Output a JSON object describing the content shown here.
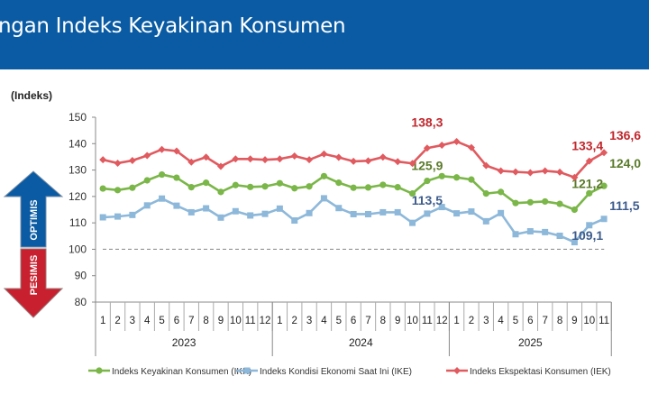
{
  "header": {
    "title": "ngan Indeks Keyakinan Konsumen"
  },
  "chart_data": {
    "type": "line",
    "ylabel": "(Indeks)",
    "ylim": [
      80,
      150
    ],
    "yticks": [
      80,
      90,
      100,
      110,
      120,
      130,
      140,
      150
    ],
    "reference_line": 100,
    "years": [
      {
        "label": "2023",
        "months": 12
      },
      {
        "label": "2024",
        "months": 12
      },
      {
        "label": "2025",
        "months": 11
      }
    ],
    "categories": [
      "1",
      "2",
      "3",
      "4",
      "5",
      "6",
      "7",
      "8",
      "9",
      "10",
      "11",
      "12",
      "1",
      "2",
      "3",
      "4",
      "5",
      "6",
      "7",
      "8",
      "9",
      "10",
      "11",
      "12",
      "1",
      "2",
      "3",
      "4",
      "5",
      "6",
      "7",
      "8",
      "9",
      "10",
      "11"
    ],
    "series": [
      {
        "name": "Indeks Keyakinan Konsumen (IKK)",
        "color": "#7ab648",
        "marker": "circle",
        "label_color": "#5a7a2a",
        "values": [
          123.0,
          122.4,
          123.3,
          126.1,
          128.3,
          127.1,
          123.5,
          125.2,
          121.7,
          124.3,
          123.6,
          123.8,
          125.0,
          123.1,
          123.8,
          127.7,
          125.2,
          123.3,
          123.4,
          124.4,
          123.5,
          121.1,
          125.9,
          127.7,
          127.2,
          126.4,
          121.1,
          121.7,
          117.5,
          117.8,
          118.1,
          117.2,
          115.0,
          121.2,
          124.0
        ],
        "annotations": [
          {
            "index": 22,
            "text": "125,9"
          },
          {
            "index": 33,
            "text": "121,2"
          },
          {
            "index": 34,
            "text": "124,0"
          }
        ]
      },
      {
        "name": "Indeks Kondisi Ekonomi Saat Ini (IKE)",
        "color": "#8db8da",
        "marker": "square",
        "label_color": "#3d5c8c",
        "values": [
          112.1,
          112.4,
          113.0,
          116.6,
          119.2,
          116.5,
          114.0,
          115.5,
          112.0,
          114.4,
          112.8,
          113.4,
          115.4,
          110.9,
          113.7,
          119.3,
          115.6,
          113.3,
          113.3,
          114.0,
          114.0,
          110.0,
          113.5,
          116.0,
          113.6,
          114.3,
          110.6,
          113.7,
          105.7,
          106.8,
          106.5,
          105.1,
          102.7,
          109.1,
          111.5
        ],
        "annotations": [
          {
            "index": 22,
            "text": "113,5"
          },
          {
            "index": 33,
            "text": "109,1"
          },
          {
            "index": 34,
            "text": "111,5"
          }
        ]
      },
      {
        "name": "Indeks Ekspektasi Konsumen (IEK)",
        "color": "#e05a5f",
        "marker": "diamond",
        "label_color": "#c0272d",
        "values": [
          133.9,
          132.6,
          133.6,
          135.5,
          137.8,
          137.2,
          133.0,
          134.9,
          131.4,
          134.2,
          134.2,
          133.9,
          134.2,
          135.3,
          133.9,
          136.1,
          134.8,
          133.3,
          133.5,
          134.9,
          133.2,
          132.5,
          138.3,
          139.4,
          140.8,
          138.5,
          131.7,
          129.7,
          129.3,
          129.0,
          129.7,
          129.2,
          127.2,
          133.4,
          136.6
        ],
        "annotations": [
          {
            "index": 22,
            "text": "138,3"
          },
          {
            "index": 33,
            "text": "133,4"
          },
          {
            "index": 34,
            "text": "136,6"
          }
        ]
      }
    ],
    "arrows": {
      "up": "OPTIMIS",
      "down": "PESIMIS",
      "up_color": "#0a5ba3",
      "down_color": "#c8202f"
    },
    "legend": "bottom"
  }
}
